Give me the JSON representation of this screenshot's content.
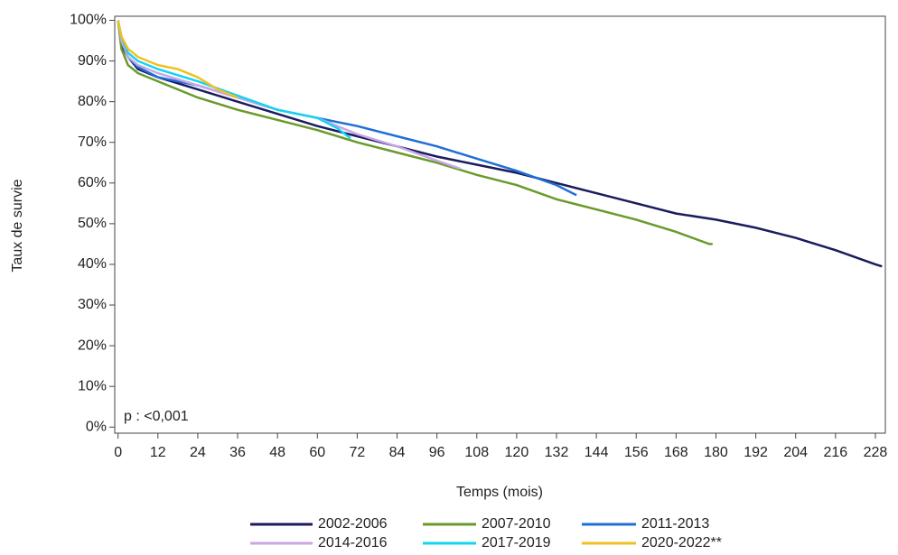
{
  "chart_data": {
    "type": "line",
    "x_label": "Temps (mois)",
    "y_label": "Taux de survie",
    "annotation": "p : <0,001",
    "xlim": [
      -1,
      231
    ],
    "ylim": [
      -1.5,
      101
    ],
    "xticks": [
      0,
      12,
      24,
      36,
      48,
      60,
      72,
      84,
      96,
      108,
      120,
      132,
      144,
      156,
      168,
      180,
      192,
      204,
      216,
      228
    ],
    "yticks": [
      {
        "value": 0,
        "label": "0%"
      },
      {
        "value": 10,
        "label": "10%"
      },
      {
        "value": 20,
        "label": "20%"
      },
      {
        "value": 30,
        "label": "30%"
      },
      {
        "value": 40,
        "label": "40%"
      },
      {
        "value": 50,
        "label": "50%"
      },
      {
        "value": 60,
        "label": "60%"
      },
      {
        "value": 70,
        "label": "70%"
      },
      {
        "value": 80,
        "label": "80%"
      },
      {
        "value": 90,
        "label": "90%"
      },
      {
        "value": 100,
        "label": "100%"
      }
    ],
    "grid": false,
    "series": [
      {
        "name": "2002-2006",
        "color": "#1b1b5e",
        "x": [
          0,
          1,
          3,
          6,
          12,
          24,
          36,
          48,
          60,
          72,
          84,
          96,
          108,
          120,
          132,
          144,
          156,
          168,
          180,
          192,
          204,
          216,
          228,
          230
        ],
        "values": [
          100,
          94,
          91,
          88,
          86,
          83,
          80,
          77,
          74,
          71.5,
          69,
          66.5,
          64.5,
          62.5,
          60,
          57.5,
          55,
          52.5,
          51,
          49,
          46.5,
          43.5,
          40,
          39.5
        ]
      },
      {
        "name": "2007-2010",
        "color": "#6a9a2a",
        "x": [
          0,
          1,
          3,
          6,
          12,
          24,
          36,
          48,
          60,
          72,
          84,
          96,
          108,
          120,
          132,
          144,
          156,
          168,
          178,
          179
        ],
        "values": [
          100,
          93,
          89,
          87,
          85,
          81,
          78,
          75.5,
          73,
          70,
          67.5,
          65,
          62,
          59.5,
          56,
          53.5,
          51,
          48,
          45,
          45
        ]
      },
      {
        "name": "2011-2013",
        "color": "#1f6fd6",
        "x": [
          0,
          1,
          3,
          6,
          12,
          24,
          36,
          48,
          60,
          72,
          84,
          96,
          108,
          120,
          132,
          138
        ],
        "values": [
          100,
          95,
          91,
          88.5,
          86,
          84,
          81,
          78,
          76,
          74,
          71.5,
          69,
          66,
          63,
          59.5,
          57
        ]
      },
      {
        "name": "2014-2016",
        "color": "#c9a6e6",
        "x": [
          0,
          1,
          3,
          6,
          12,
          24,
          36,
          48,
          60,
          72,
          84,
          96,
          103
        ],
        "values": [
          100,
          95,
          91,
          89,
          87,
          84,
          81,
          78,
          76,
          72,
          69,
          65.5,
          63.5
        ]
      },
      {
        "name": "2017-2019",
        "color": "#14d4f0",
        "x": [
          0,
          1,
          3,
          6,
          12,
          24,
          36,
          48,
          60,
          66,
          70
        ],
        "values": [
          100,
          96,
          92,
          90,
          88,
          85,
          81.5,
          78,
          76,
          73.5,
          71
        ]
      },
      {
        "name": "2020-2022**",
        "color": "#f0c020",
        "x": [
          0,
          1,
          3,
          6,
          12,
          18,
          24,
          30,
          36
        ],
        "values": [
          100,
          96,
          93,
          91,
          89,
          88,
          86,
          83,
          81
        ]
      }
    ]
  }
}
